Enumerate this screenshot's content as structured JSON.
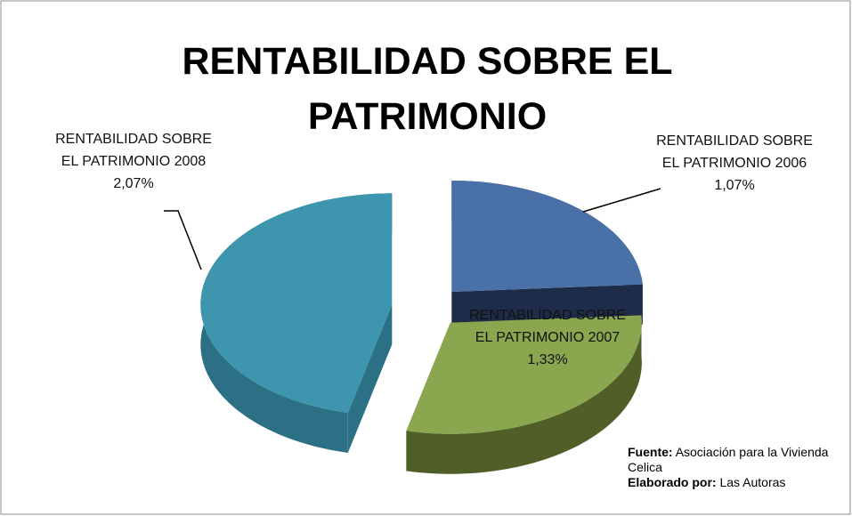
{
  "chart_data": {
    "type": "pie3d",
    "title": "RENTABILIDAD SOBRE EL PATRIMONIO",
    "categories": [
      "RENTABILIDAD SOBRE EL PATRIMONIO 2006",
      "RENTABILIDAD SOBRE EL PATRIMONIO 2007",
      "RENTABILIDAD SOBRE EL PATRIMONIO 2008"
    ],
    "values": [
      1.07,
      1.33,
      2.07
    ],
    "value_labels": [
      "1,07%",
      "1,33%",
      "2,07%"
    ],
    "colors": [
      "#4a70a8",
      "#8aa64f",
      "#3d96ae"
    ],
    "side_colors": [
      "#1d2c48",
      "#505f28",
      "#2c7085"
    ]
  },
  "source": {
    "label": "Fuente:",
    "text": "Asociación para  la Vivienda Celica"
  },
  "author": {
    "label": "Elaborado por:",
    "text": "Las Autoras"
  }
}
